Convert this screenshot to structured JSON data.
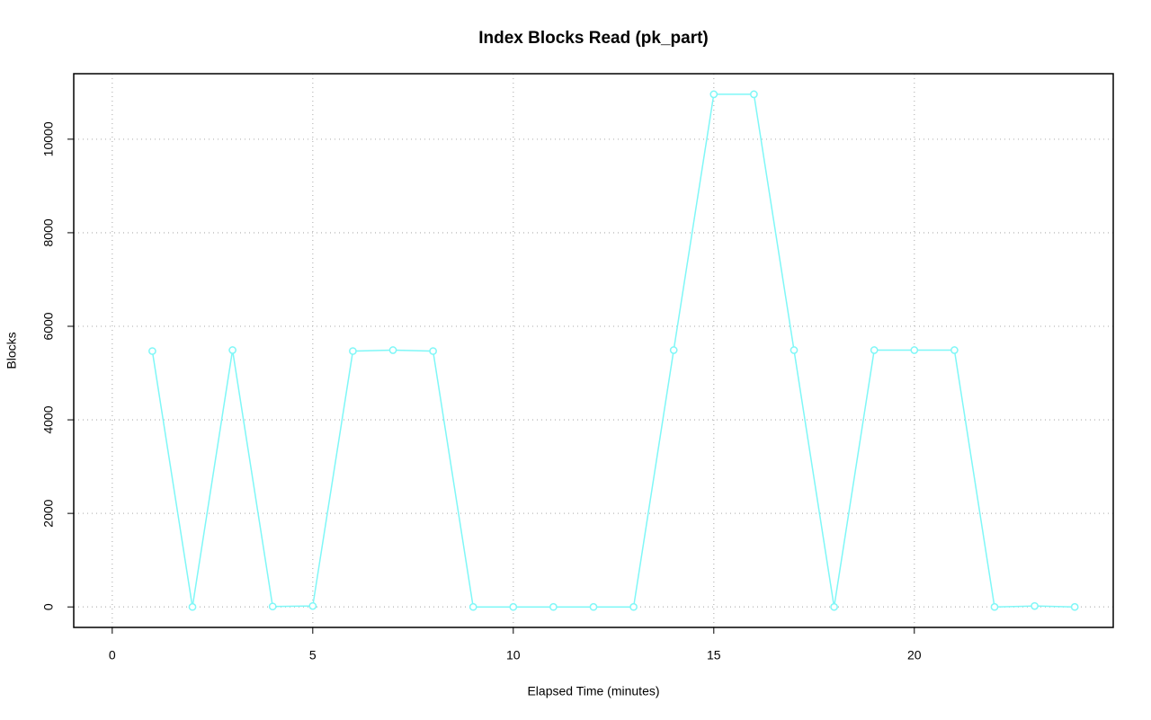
{
  "chart_data": {
    "type": "line",
    "title": "Index Blocks Read (pk_part)",
    "x_label": "Elapsed Time (minutes)",
    "y_label": "Blocks",
    "x": [
      1,
      2,
      3,
      4,
      5,
      6,
      7,
      8,
      9,
      10,
      11,
      12,
      13,
      14,
      15,
      16,
      17,
      18,
      19,
      20,
      21,
      22,
      23,
      24
    ],
    "series": [
      {
        "name": "pk_part",
        "color": "#7ff7f7",
        "values": [
          5470,
          0,
          5490,
          10,
          20,
          5470,
          5490,
          5470,
          0,
          0,
          0,
          0,
          0,
          5490,
          10960,
          10960,
          5490,
          0,
          5490,
          5490,
          5490,
          0,
          20,
          0
        ]
      }
    ],
    "xlim": [
      -0.96,
      24.96
    ],
    "xticks": [
      0,
      5,
      10,
      15,
      20
    ],
    "ylim": [
      -438,
      11400
    ],
    "yticks": [
      0,
      2000,
      4000,
      6000,
      8000,
      10000
    ],
    "grid": true
  }
}
